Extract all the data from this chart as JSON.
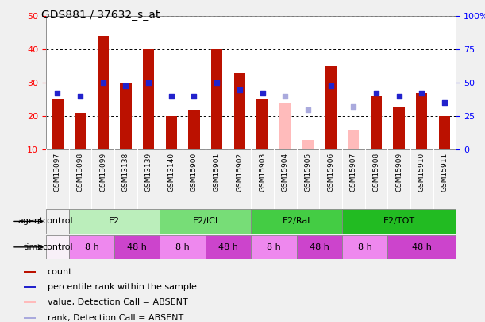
{
  "title": "GDS881 / 37632_s_at",
  "samples": [
    "GSM13097",
    "GSM13098",
    "GSM13099",
    "GSM13138",
    "GSM13139",
    "GSM13140",
    "GSM15900",
    "GSM15901",
    "GSM15902",
    "GSM15903",
    "GSM15904",
    "GSM15905",
    "GSM15906",
    "GSM15907",
    "GSM15908",
    "GSM15909",
    "GSM15910",
    "GSM15911"
  ],
  "count_values": [
    25,
    21,
    44,
    30,
    40,
    20,
    22,
    40,
    33,
    25,
    null,
    null,
    35,
    null,
    26,
    23,
    27,
    20
  ],
  "count_absent": [
    null,
    null,
    null,
    null,
    null,
    null,
    null,
    null,
    null,
    null,
    24,
    13,
    null,
    16,
    null,
    null,
    null,
    null
  ],
  "percentile_values": [
    27,
    26,
    30,
    29,
    30,
    26,
    26,
    30,
    28,
    27,
    null,
    null,
    29,
    null,
    27,
    26,
    27,
    24
  ],
  "percentile_absent": [
    null,
    null,
    null,
    null,
    null,
    null,
    null,
    null,
    null,
    null,
    26,
    22,
    null,
    23,
    null,
    null,
    null,
    null
  ],
  "ylim_left": [
    10,
    50
  ],
  "ylim_right": [
    0,
    100
  ],
  "yticks_left": [
    10,
    20,
    30,
    40,
    50
  ],
  "ytick_labels_left": [
    "10",
    "20",
    "30",
    "40",
    "50"
  ],
  "yticks_right_vals": [
    0,
    25,
    50,
    75,
    100
  ],
  "ytick_labels_right": [
    "0",
    "25",
    "50",
    "75",
    "100%"
  ],
  "bar_color_red": "#bb1100",
  "bar_color_pink": "#ffbbbb",
  "dot_color_blue": "#2222cc",
  "dot_color_lightblue": "#aaaadd",
  "agent_groups": [
    {
      "label": "control",
      "start": 0,
      "end": 1,
      "color": "#f0f0f0"
    },
    {
      "label": "E2",
      "start": 1,
      "end": 5,
      "color": "#bbeebb"
    },
    {
      "label": "E2/ICI",
      "start": 5,
      "end": 9,
      "color": "#77dd77"
    },
    {
      "label": "E2/Ral",
      "start": 9,
      "end": 13,
      "color": "#44cc44"
    },
    {
      "label": "E2/TOT",
      "start": 13,
      "end": 18,
      "color": "#22bb22"
    }
  ],
  "time_groups": [
    {
      "label": "control",
      "start": 0,
      "end": 1,
      "color": "#f8f0f8"
    },
    {
      "label": "8 h",
      "start": 1,
      "end": 3,
      "color": "#ee88ee"
    },
    {
      "label": "48 h",
      "start": 3,
      "end": 5,
      "color": "#cc44cc"
    },
    {
      "label": "8 h",
      "start": 5,
      "end": 7,
      "color": "#ee88ee"
    },
    {
      "label": "48 h",
      "start": 7,
      "end": 9,
      "color": "#cc44cc"
    },
    {
      "label": "8 h",
      "start": 9,
      "end": 11,
      "color": "#ee88ee"
    },
    {
      "label": "48 h",
      "start": 11,
      "end": 13,
      "color": "#cc44cc"
    },
    {
      "label": "8 h",
      "start": 13,
      "end": 15,
      "color": "#ee88ee"
    },
    {
      "label": "48 h",
      "start": 15,
      "end": 18,
      "color": "#cc44cc"
    }
  ]
}
